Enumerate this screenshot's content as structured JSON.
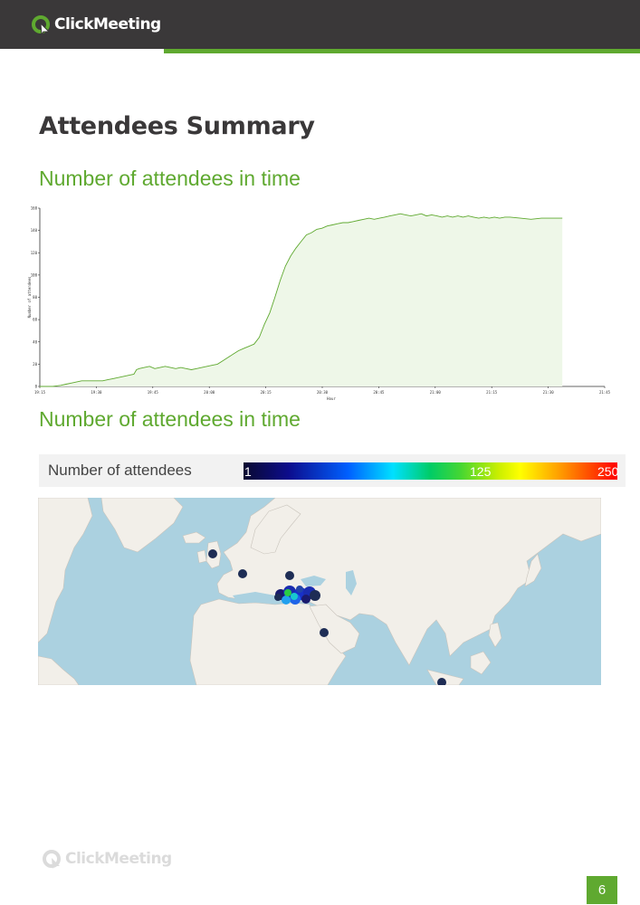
{
  "header": {
    "brand": "ClickMeeting",
    "brand_color": "#5fa930",
    "bar_color": "#3a3839",
    "logo_icon": "clickmeeting-logo-icon"
  },
  "page_title": "Attendees Summary",
  "section1": {
    "heading": "Number of attendees in time"
  },
  "section2": {
    "heading": "Number of attendees in time"
  },
  "chart_data": {
    "type": "area",
    "title": "",
    "xlabel": "Hour",
    "ylabel": "Number of attendees",
    "x": [
      "19:15",
      "19:30",
      "19:45",
      "20:00",
      "20:15",
      "20:30",
      "20:45",
      "21:00",
      "21:15",
      "21:30",
      "21:45"
    ],
    "ylim": [
      0,
      160
    ],
    "yticks": [
      "0",
      "20",
      "40",
      "60",
      "80",
      "100",
      "120",
      "140",
      "160"
    ],
    "series": [
      {
        "color": "#5fa930",
        "fill": "#eef7e8",
        "points": [
          [
            0,
            0
          ],
          [
            2.5,
            0
          ],
          [
            4,
            1
          ],
          [
            5,
            2
          ],
          [
            6,
            3
          ],
          [
            7,
            4
          ],
          [
            8,
            5
          ],
          [
            9,
            5
          ],
          [
            10,
            5
          ],
          [
            11,
            5
          ],
          [
            12,
            5
          ],
          [
            13,
            6
          ],
          [
            14,
            7
          ],
          [
            15,
            8
          ],
          [
            16,
            9
          ],
          [
            17,
            10
          ],
          [
            18,
            11
          ],
          [
            18.5,
            15
          ],
          [
            19,
            16
          ],
          [
            20,
            17
          ],
          [
            21,
            18
          ],
          [
            22,
            16
          ],
          [
            23,
            17
          ],
          [
            24,
            18
          ],
          [
            25,
            17
          ],
          [
            26,
            16
          ],
          [
            27,
            17
          ],
          [
            28,
            16
          ],
          [
            29,
            15
          ],
          [
            30,
            16
          ],
          [
            31,
            17
          ],
          [
            32,
            18
          ],
          [
            33,
            19
          ],
          [
            34,
            20
          ],
          [
            35,
            23
          ],
          [
            36,
            26
          ],
          [
            37,
            29
          ],
          [
            38,
            32
          ],
          [
            39,
            34
          ],
          [
            40,
            36
          ],
          [
            41,
            38
          ],
          [
            42,
            44
          ],
          [
            43,
            56
          ],
          [
            44,
            66
          ],
          [
            45,
            80
          ],
          [
            46,
            95
          ],
          [
            47,
            108
          ],
          [
            48,
            117
          ],
          [
            49,
            124
          ],
          [
            50,
            130
          ],
          [
            51,
            136
          ],
          [
            52,
            138
          ],
          [
            53,
            141
          ],
          [
            54,
            142
          ],
          [
            55,
            144
          ],
          [
            56,
            145
          ],
          [
            57,
            146
          ],
          [
            58,
            147
          ],
          [
            59,
            147
          ],
          [
            60,
            148
          ],
          [
            61,
            149
          ],
          [
            62,
            150
          ],
          [
            63,
            151
          ],
          [
            64,
            150
          ],
          [
            65,
            151
          ],
          [
            66,
            152
          ],
          [
            67,
            153
          ],
          [
            68,
            154
          ],
          [
            69,
            155
          ],
          [
            70,
            154
          ],
          [
            71,
            153
          ],
          [
            72,
            154
          ],
          [
            73,
            155
          ],
          [
            74,
            153
          ],
          [
            75,
            154
          ],
          [
            76,
            153
          ],
          [
            77,
            152
          ],
          [
            78,
            153
          ],
          [
            79,
            152
          ],
          [
            80,
            153
          ],
          [
            81,
            152
          ],
          [
            82,
            153
          ],
          [
            83,
            152
          ],
          [
            84,
            151
          ],
          [
            85,
            152
          ],
          [
            86,
            151
          ],
          [
            87,
            152
          ],
          [
            88,
            151
          ],
          [
            89,
            152
          ],
          [
            90,
            152
          ],
          [
            92,
            151
          ],
          [
            94,
            150
          ],
          [
            96,
            151
          ],
          [
            98,
            151
          ],
          [
            100,
            151
          ]
        ]
      }
    ]
  },
  "legend": {
    "label": "Number of attendees",
    "min": "1",
    "mid": "125",
    "max": "250"
  },
  "map": {
    "markers": [
      {
        "location": "United Kingdom",
        "color": "#1e2d55"
      },
      {
        "location": "Switzerland",
        "color": "#1e2d55"
      },
      {
        "location": "Romania",
        "color": "#1e2d55"
      },
      {
        "location": "Turkey",
        "color": "#1a2cb0"
      },
      {
        "location": "Saudi Arabia",
        "color": "#1e2d55"
      },
      {
        "location": "Singapore",
        "color": "#1e2d55"
      }
    ]
  },
  "footer": {
    "brand": "ClickMeeting",
    "page_number": "6"
  }
}
